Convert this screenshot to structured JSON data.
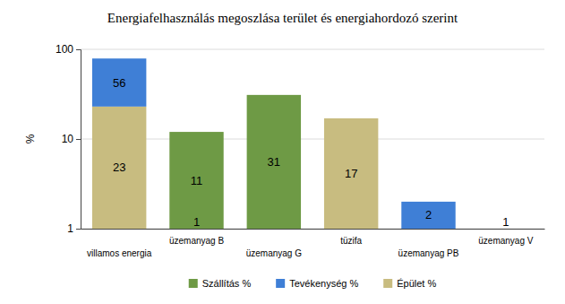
{
  "chart_data": {
    "type": "bar",
    "title": "Energiafelhasználás megoszlása terület és energiahordozó szerint",
    "y_label": "%",
    "categories": [
      "villamos energia",
      "üzemanyag B",
      "üzemanyag G",
      "tüzifa",
      "üzemanyag PB",
      "üzemanyag V"
    ],
    "series": [
      {
        "name": "Szállítás %",
        "color": "#6e9a45",
        "values": [
          null,
          11,
          31,
          null,
          null,
          1
        ]
      },
      {
        "name": "Tevékenység %",
        "color": "#3f7fd6",
        "values": [
          56,
          1,
          null,
          null,
          2,
          null
        ]
      },
      {
        "name": "Épület %",
        "color": "#c8bc80",
        "values": [
          23,
          null,
          null,
          17,
          null,
          null
        ]
      }
    ],
    "stacked": true,
    "log": "y",
    "ylim": [
      1,
      100
    ],
    "yticks": [
      1,
      10,
      100
    ],
    "grid": true,
    "legend": "bottom",
    "data_labels": true
  }
}
